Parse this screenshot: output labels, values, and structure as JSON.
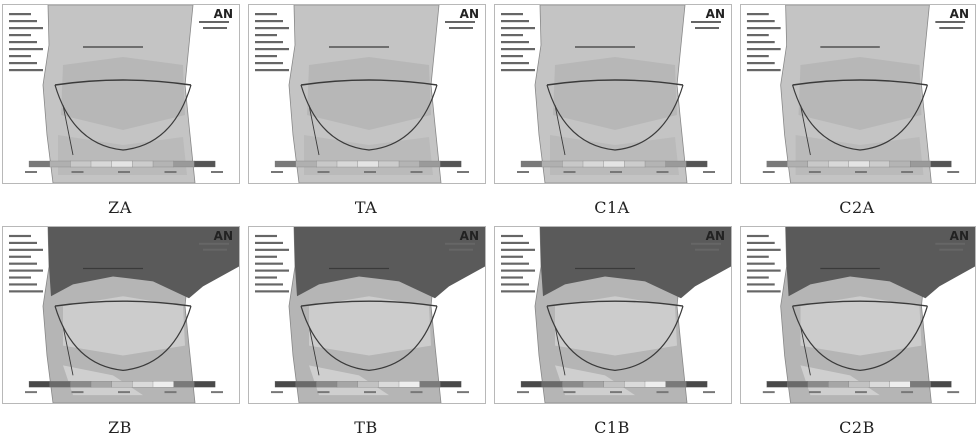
{
  "figure": {
    "panels": [
      {
        "id": "ZA",
        "caption": "ZA",
        "row": 1
      },
      {
        "id": "TA",
        "caption": "TA",
        "row": 1
      },
      {
        "id": "C1A",
        "caption": "C1A",
        "row": 1
      },
      {
        "id": "C2A",
        "caption": "C2A",
        "row": 1
      },
      {
        "id": "ZB",
        "caption": "ZB",
        "row": 2
      },
      {
        "id": "TB",
        "caption": "TB",
        "row": 2
      },
      {
        "id": "C1B",
        "caption": "C1B",
        "row": 2
      },
      {
        "id": "C2B",
        "caption": "C2B",
        "row": 2
      }
    ],
    "logo_text": "AN",
    "colors": {
      "row1_fill": "#c4c4c4",
      "row1_shade": "#a9a9a9",
      "row2_dark": "#5a5a5a",
      "row2_fill": "#b5b5b5",
      "row2_light": "#d6d6d6",
      "line": "#3a3a3a"
    }
  }
}
